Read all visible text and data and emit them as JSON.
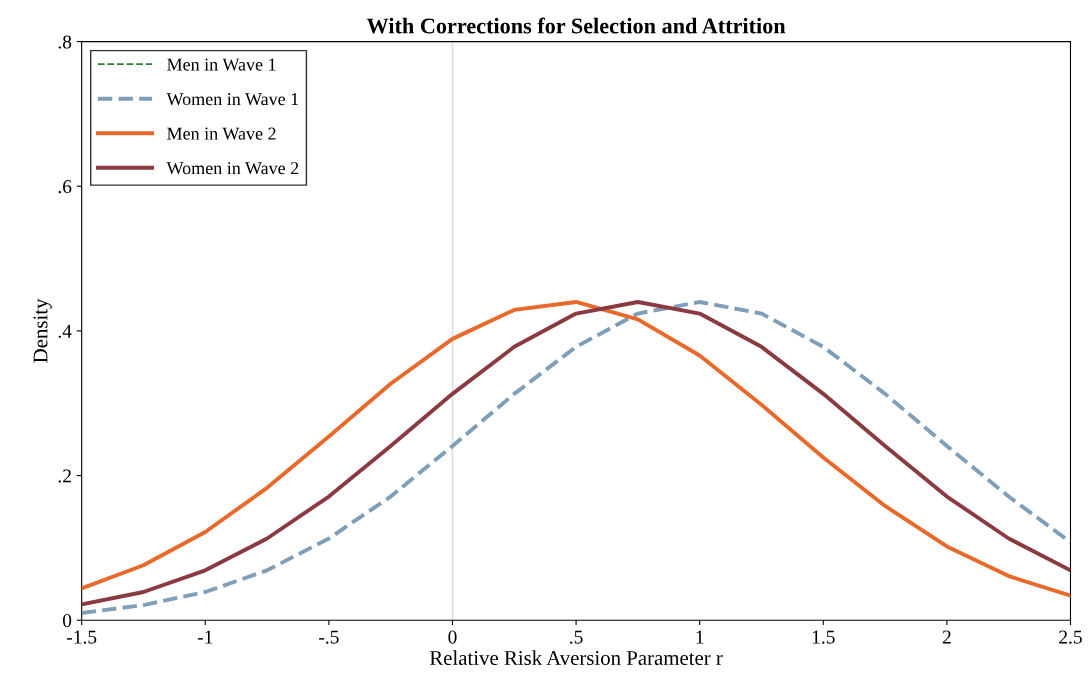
{
  "chart_data": {
    "type": "line",
    "title": "With Corrections for Selection and Attrition",
    "xlabel": "Relative Risk Aversion Parameter r",
    "ylabel": "Density",
    "x": [
      -1.5,
      -1.25,
      -1,
      -0.75,
      -0.5,
      -0.25,
      0,
      0.25,
      0.5,
      0.75,
      1,
      1.25,
      1.5,
      1.75,
      2,
      2.25,
      2.5
    ],
    "series": [
      {
        "name": "Men in Wave 1",
        "color": "#2e7d3a",
        "line_style": "dashed",
        "values": [
          null,
          null,
          null,
          null,
          null,
          null,
          null,
          null,
          null,
          null,
          null,
          null,
          null,
          null,
          null,
          null,
          null
        ]
      },
      {
        "name": "Women in Wave 1",
        "color": "#7f9fb8",
        "line_style": "dashed",
        "values": [
          0.01,
          0.021,
          0.039,
          0.069,
          0.113,
          0.171,
          0.241,
          0.313,
          0.378,
          0.424,
          0.44,
          0.424,
          0.378,
          0.313,
          0.241,
          0.171,
          0.108
        ]
      },
      {
        "name": "Men in Wave 2",
        "color": "#e8692a",
        "line_style": "solid",
        "values": [
          0.044,
          0.076,
          0.122,
          0.183,
          0.254,
          0.327,
          0.389,
          0.429,
          0.44,
          0.416,
          0.366,
          0.298,
          0.225,
          0.158,
          0.102,
          0.061,
          0.034
        ]
      },
      {
        "name": "Women in Wave 2",
        "color": "#8b3a42",
        "line_style": "solid",
        "values": [
          0.022,
          0.039,
          0.069,
          0.113,
          0.171,
          0.241,
          0.313,
          0.378,
          0.424,
          0.44,
          0.424,
          0.378,
          0.313,
          0.241,
          0.171,
          0.113,
          0.069
        ]
      }
    ],
    "xlim": [
      -1.5,
      2.5
    ],
    "ylim": [
      0,
      0.8
    ],
    "xticks": [
      {
        "value": -1.5,
        "label": "-1.5"
      },
      {
        "value": -1,
        "label": "-1"
      },
      {
        "value": -0.5,
        "label": "-.5"
      },
      0,
      {
        "value": 0.5,
        "label": ".5"
      },
      1,
      1.5,
      2,
      2.5
    ],
    "yticks": [
      0,
      {
        "value": 0.2,
        "label": ".2"
      },
      {
        "value": 0.4,
        "label": ".4"
      },
      {
        "value": 0.6,
        "label": ".6"
      },
      {
        "value": 0.8,
        "label": ".8"
      }
    ],
    "ref_lines": [
      {
        "axis": "x",
        "value": 0,
        "color": "#dddddd"
      }
    ],
    "legend": "top left",
    "grid": false
  }
}
